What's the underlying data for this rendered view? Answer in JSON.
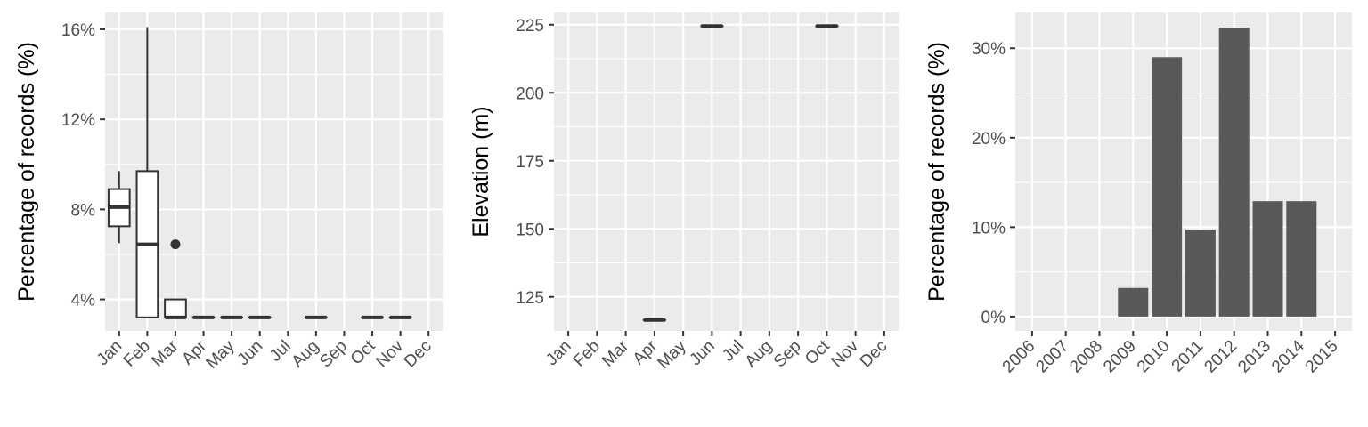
{
  "chart_data": [
    {
      "type": "boxplot",
      "ylabel": "Percentage of records (%)",
      "yticks": [
        "4%",
        "8%",
        "12%",
        "16%"
      ],
      "ytick_values": [
        4,
        8,
        12,
        16
      ],
      "ylim": [
        2.6,
        16.75
      ],
      "categories": [
        "Jan",
        "Feb",
        "Mar",
        "Apr",
        "May",
        "Jun",
        "Jul",
        "Aug",
        "Sep",
        "Oct",
        "Nov",
        "Dec"
      ],
      "boxes": [
        {
          "month": "Jan",
          "low": 6.5,
          "q1": 7.25,
          "median": 8.1,
          "q3": 8.9,
          "high": 9.7
        },
        {
          "month": "Feb",
          "low": 3.2,
          "q1": 3.2,
          "median": 6.45,
          "q3": 9.7,
          "high": 16.1
        },
        {
          "month": "Mar",
          "low": 3.2,
          "q1": 3.2,
          "median": 3.2,
          "q3": 4.0,
          "high": 4.0,
          "outliers": [
            6.45
          ]
        },
        {
          "month": "Apr",
          "low": 3.2,
          "q1": 3.2,
          "median": 3.2,
          "q3": 3.2,
          "high": 3.2
        },
        {
          "month": "May",
          "low": 3.2,
          "q1": 3.2,
          "median": 3.2,
          "q3": 3.2,
          "high": 3.2
        },
        {
          "month": "Jun",
          "low": 3.2,
          "q1": 3.2,
          "median": 3.2,
          "q3": 3.2,
          "high": 3.2
        },
        {
          "month": "Aug",
          "low": 3.2,
          "q1": 3.2,
          "median": 3.2,
          "q3": 3.2,
          "high": 3.2
        },
        {
          "month": "Oct",
          "low": 3.2,
          "q1": 3.2,
          "median": 3.2,
          "q3": 3.2,
          "high": 3.2
        },
        {
          "month": "Nov",
          "low": 3.2,
          "q1": 3.2,
          "median": 3.2,
          "q3": 3.2,
          "high": 3.2
        }
      ]
    },
    {
      "type": "boxplot",
      "ylabel": "Elevation (m)",
      "yticks": [
        "125",
        "150",
        "175",
        "200",
        "225"
      ],
      "ytick_values": [
        125,
        150,
        175,
        200,
        225
      ],
      "ylim": [
        112.5,
        229.5
      ],
      "categories": [
        "Jan",
        "Feb",
        "Mar",
        "Apr",
        "May",
        "Jun",
        "Jul",
        "Aug",
        "Sep",
        "Oct",
        "Nov",
        "Dec"
      ],
      "boxes": [
        {
          "month": "Apr",
          "low": 116.5,
          "q1": 116.5,
          "median": 116.5,
          "q3": 116.5,
          "high": 116.5
        },
        {
          "month": "Jun",
          "low": 224.5,
          "q1": 224.5,
          "median": 224.5,
          "q3": 224.5,
          "high": 224.5
        },
        {
          "month": "Oct",
          "low": 224.5,
          "q1": 224.5,
          "median": 224.5,
          "q3": 224.5,
          "high": 224.5
        }
      ]
    },
    {
      "type": "bar",
      "ylabel": "Percentage of records (%)",
      "yticks": [
        "0%",
        "10%",
        "20%",
        "30%"
      ],
      "ytick_values": [
        0,
        10,
        20,
        30
      ],
      "ylim": [
        -1.6,
        34.0
      ],
      "categories": [
        "2006",
        "2007",
        "2008",
        "2009",
        "2010",
        "2011",
        "2012",
        "2013",
        "2014",
        "2015"
      ],
      "values": [
        0,
        0,
        0,
        3.2,
        29.0,
        9.7,
        32.3,
        12.9,
        12.9,
        0
      ]
    }
  ],
  "colors": {
    "panel_background": "#ebebeb",
    "grid": "#ffffff",
    "tick_text": "#4d4d4d",
    "marks": "#333333",
    "bar_fill": "#595959"
  }
}
